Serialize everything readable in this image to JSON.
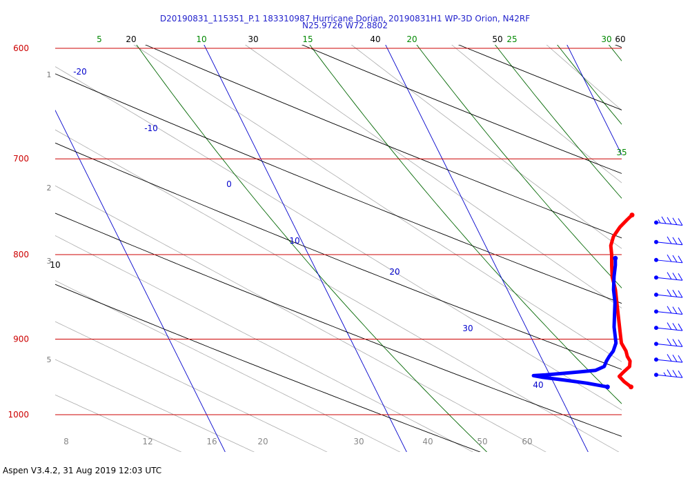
{
  "header": {
    "line1": "D20190831_115351_P.1 183310987 Hurricane Dorian, 20190831H1 WP-3D Orion, N42RF",
    "line2": "N25.9726 W72.8802"
  },
  "footer": "Aspen V3.4.2, 31 Aug 2019  12:03 UTC",
  "chart_data": {
    "type": "line",
    "title": "D20190831_115351_P.1 183310987 Hurricane Dorian, 20190831H1 WP-3D Orion, N42RF",
    "subtitle": "N25.9726 W72.8802",
    "xlabel": "",
    "ylabel": "",
    "pressure_range": [
      600,
      1000
    ],
    "pressure_ticks": [
      "600",
      "700",
      "800",
      "900",
      "1000"
    ],
    "temperature_ticks": [
      "8",
      "12",
      "16",
      "20",
      "30",
      "40",
      "50",
      "60"
    ],
    "height_ticks": [
      "1",
      "2",
      "3",
      "5"
    ],
    "mixing_ratio_ticks": [
      "5",
      "10",
      "15",
      "20",
      "25",
      "30",
      "35"
    ],
    "dry_adiabat_ticks": [
      "10",
      "20",
      "30",
      "40",
      "50",
      "60"
    ],
    "isotherm_ticks": [
      "-20",
      "-10",
      "0",
      "10",
      "20",
      "30",
      "40"
    ],
    "series": [
      {
        "color": "#ff0000",
        "pressure": [
          757,
          762,
          770,
          780,
          790,
          800,
          812,
          825,
          840,
          855,
          870,
          885,
          895,
          905,
          915,
          922,
          928,
          935,
          942,
          948,
          955,
          962
        ],
        "temperature": [
          19.9,
          19.5,
          18.9,
          18.3,
          17.9,
          17.7,
          17.4,
          17.1,
          16.9,
          16.6,
          16.3,
          16.0,
          15.8,
          15.6,
          15.6,
          15.5,
          15.5,
          15.3,
          14.8,
          14.4,
          14.5,
          14.7
        ]
      },
      {
        "color": "#0000ff",
        "pressure": [
          804,
          812,
          825,
          840,
          855,
          870,
          885,
          895,
          905,
          915,
          922,
          928,
          935,
          940,
          942,
          944,
          946,
          947,
          949,
          953,
          957,
          962
        ],
        "temperature": [
          17.8,
          17.6,
          17.2,
          16.8,
          16.5,
          16.1,
          15.7,
          15.5,
          15.3,
          14.9,
          14.5,
          14.2,
          13.9,
          13.3,
          12.4,
          11.4,
          10.4,
          9.7,
          10.1,
          11.3,
          12.4,
          13.4
        ]
      }
    ],
    "wind_barbs": {
      "pressure": [
        765,
        786,
        806,
        826,
        846,
        866,
        886,
        906,
        926,
        946
      ],
      "speed_kt": [
        35,
        30,
        30,
        30,
        30,
        30,
        30,
        30,
        30,
        25
      ]
    },
    "colors": {
      "isobar": "#cc0000",
      "isotherm": "#0000cc",
      "mixing_ratio": "#006600",
      "dry_adiabat": "#000000",
      "moist_adiabat": "#aaaaaa",
      "temperature_trace": "#ff0000",
      "dewpoint_trace": "#0000ff"
    }
  }
}
